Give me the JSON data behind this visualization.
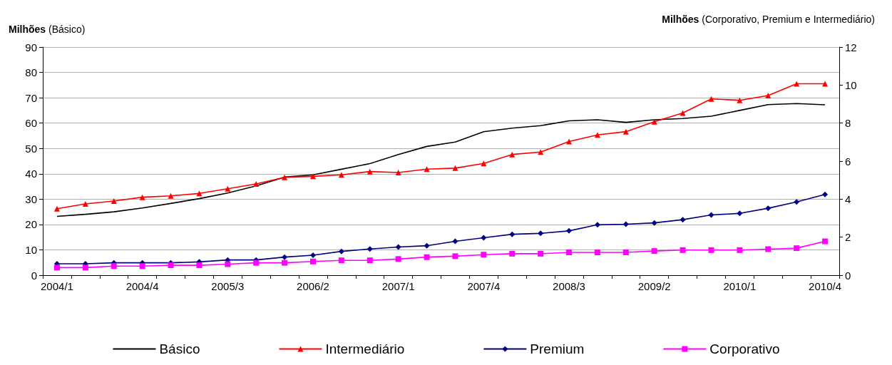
{
  "chart_data": {
    "type": "line",
    "ylabel": "Milhões (Básico)",
    "y2label": "Milhões (Corporativo, Premium e Intermediário)",
    "categories": [
      "2004/1",
      null,
      null,
      "2004/4",
      null,
      null,
      "2005/3",
      null,
      null,
      "2006/2",
      null,
      null,
      "2007/1",
      null,
      null,
      "2007/4",
      null,
      null,
      "2008/3",
      null,
      null,
      "2009/2",
      null,
      null,
      "2010/1",
      null,
      null,
      "2010/4"
    ],
    "series": [
      {
        "name": "Básico",
        "color": "#000000",
        "marker": "none",
        "values": [
          23.2,
          24,
          25,
          26.5,
          28.3,
          30.2,
          32.4,
          35.2,
          38.7,
          39.6,
          41.8,
          44,
          47.6,
          50.8,
          52.5,
          56.6,
          58,
          59,
          60.9,
          61.3,
          60.3,
          61.3,
          61.8,
          62.7,
          65,
          67.3,
          67.7,
          67.2
        ]
      },
      {
        "name": "Intermediário",
        "color": "#ff0000",
        "marker": "triangle",
        "axis": "y2",
        "values": [
          3.5,
          3.75,
          3.9,
          4.1,
          4.17,
          4.3,
          4.55,
          4.8,
          5.15,
          5.2,
          5.28,
          5.45,
          5.4,
          5.58,
          5.63,
          5.88,
          6.35,
          6.48,
          7.03,
          7.38,
          7.55,
          8.07,
          8.53,
          9.27,
          9.2,
          9.45,
          10.07,
          10.07
        ]
      },
      {
        "name": "Premium",
        "color": "#000080",
        "marker": "diamond",
        "axis": "y2",
        "values": [
          0.6,
          0.6,
          0.65,
          0.65,
          0.65,
          0.7,
          0.8,
          0.8,
          0.95,
          1.05,
          1.25,
          1.38,
          1.48,
          1.55,
          1.78,
          1.97,
          2.15,
          2.2,
          2.33,
          2.65,
          2.68,
          2.75,
          2.92,
          3.17,
          3.25,
          3.52,
          3.85,
          4.25
        ]
      },
      {
        "name": "Corporativo",
        "color": "#ff00ff",
        "marker": "square",
        "axis": "y2",
        "values": [
          0.4,
          0.4,
          0.48,
          0.48,
          0.52,
          0.52,
          0.58,
          0.65,
          0.65,
          0.72,
          0.78,
          0.78,
          0.85,
          0.95,
          1.0,
          1.08,
          1.13,
          1.13,
          1.2,
          1.2,
          1.2,
          1.27,
          1.32,
          1.32,
          1.32,
          1.37,
          1.42,
          1.78
        ]
      }
    ],
    "ylim": [
      0,
      90
    ],
    "yticks": [
      0,
      10,
      20,
      30,
      40,
      50,
      60,
      70,
      80,
      90
    ],
    "y2lim": [
      0,
      12
    ],
    "y2ticks": [
      0,
      2,
      4,
      6,
      8,
      10,
      12
    ],
    "grid": "y",
    "legend": "bottom",
    "line_style": "solid"
  }
}
